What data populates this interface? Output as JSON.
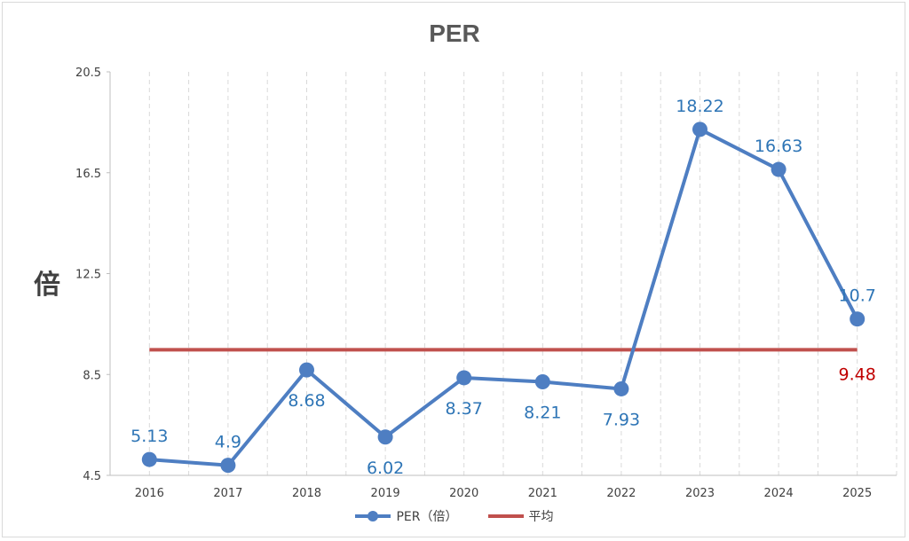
{
  "chart_data": {
    "type": "line",
    "title": "PER",
    "ylabel": "倍",
    "xlabel": "",
    "categories": [
      "2016",
      "2017",
      "2018",
      "2019",
      "2020",
      "2021",
      "2022",
      "2023",
      "2024",
      "2025"
    ],
    "ylim": [
      4.5,
      20.5
    ],
    "yticks": [
      "20.5",
      "16.5",
      "12.5",
      "8.5",
      "4.5"
    ],
    "ytick_values": [
      20.5,
      16.5,
      12.5,
      8.5,
      4.5
    ],
    "grid": "vertical-dashed",
    "legend_position": "bottom",
    "series": [
      {
        "name": "PER（倍）",
        "values": [
          5.13,
          4.9,
          8.68,
          6.02,
          8.37,
          8.21,
          7.93,
          18.22,
          16.63,
          10.7
        ],
        "labels": [
          "5.13",
          "4.9",
          "8.68",
          "6.02",
          "8.37",
          "8.21",
          "7.93",
          "18.22",
          "16.63",
          "10.7"
        ],
        "label_positions": [
          "above",
          "above",
          "below",
          "below",
          "below",
          "below",
          "below",
          "above",
          "above",
          "above"
        ],
        "color": "#4e7ec2",
        "label_color": "#2e75b6",
        "marker": "circle"
      },
      {
        "name": "平均",
        "value": 9.48,
        "label": "9.48",
        "color": "#c0504d",
        "label_color": "#c00000"
      }
    ]
  }
}
